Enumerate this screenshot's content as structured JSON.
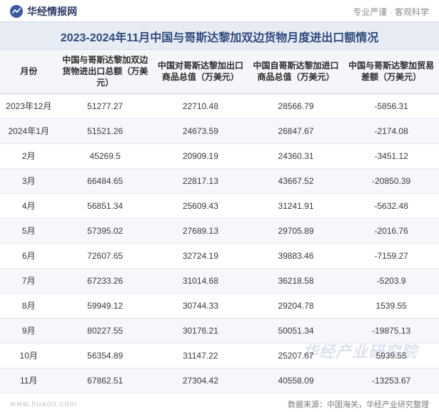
{
  "brand": {
    "name": "华经情报网",
    "icon_fill": "#3b5ba5",
    "icon_stroke": "#ffffff",
    "tagline": "专业严谨 · 客观科学"
  },
  "title": "2023-2024年11月中国与哥斯达黎加双边货物月度进出口额情况",
  "table": {
    "columns": [
      "月份",
      "中国与哥斯达黎加双边货物进出口总额（万美元）",
      "中国对哥斯达黎加出口商品总值（万美元）",
      "中国自哥斯达黎加进口商品总值（万美元）",
      "中国与哥斯达黎加贸易差额（万美元）"
    ],
    "col_widths_class": [
      "col-month",
      "col-num",
      "col-num",
      "col-num",
      "col-num"
    ],
    "rows": [
      {
        "month": "2023年12月",
        "total": "51277.27",
        "export": "22710.48",
        "import": "28566.79",
        "balance": "-5856.31",
        "neg": true
      },
      {
        "month": "2024年1月",
        "total": "51521.26",
        "export": "24673.59",
        "import": "26847.67",
        "balance": "-2174.08",
        "neg": true
      },
      {
        "month": "2月",
        "total": "45269.5",
        "export": "20909.19",
        "import": "24360.31",
        "balance": "-3451.12",
        "neg": true
      },
      {
        "month": "3月",
        "total": "66484.65",
        "export": "22817.13",
        "import": "43667.52",
        "balance": "-20850.39",
        "neg": true
      },
      {
        "month": "4月",
        "total": "56851.34",
        "export": "25609.43",
        "import": "31241.91",
        "balance": "-5632.48",
        "neg": true
      },
      {
        "month": "5月",
        "total": "57395.02",
        "export": "27689.13",
        "import": "29705.89",
        "balance": "-2016.76",
        "neg": true
      },
      {
        "month": "6月",
        "total": "72607.65",
        "export": "32724.19",
        "import": "39883.46",
        "balance": "-7159.27",
        "neg": true
      },
      {
        "month": "7月",
        "total": "67233.26",
        "export": "31014.68",
        "import": "36218.58",
        "balance": "-5203.9",
        "neg": true
      },
      {
        "month": "8月",
        "total": "59949.12",
        "export": "30744.33",
        "import": "29204.78",
        "balance": "1539.55",
        "neg": false
      },
      {
        "month": "9月",
        "total": "80227.55",
        "export": "30176.21",
        "import": "50051.34",
        "balance": "-19875.13",
        "neg": true
      },
      {
        "month": "10月",
        "total": "56354.89",
        "export": "31147.22",
        "import": "25207.67",
        "balance": "5939.55",
        "neg": false
      },
      {
        "month": "11月",
        "total": "67862.51",
        "export": "27304.42",
        "import": "40558.09",
        "balance": "-13253.67",
        "neg": true
      }
    ]
  },
  "footer": {
    "left": "www.huaon.com",
    "right": "数据来源：中国海关，华经产业研究整理"
  },
  "watermark": "华经产业研究院",
  "style": {
    "title_bg": "#e6ebf4",
    "title_color": "#2f4b7c",
    "header_bg": "#f4f6fa",
    "row_alt_bg": "#f5f7fb",
    "border_color": "#e4e8f0",
    "neg_color": "#1f8f6f",
    "text_color": "#3a3a3a",
    "font_family": "Microsoft YaHei",
    "title_fontsize": 16,
    "cell_fontsize": 12
  }
}
